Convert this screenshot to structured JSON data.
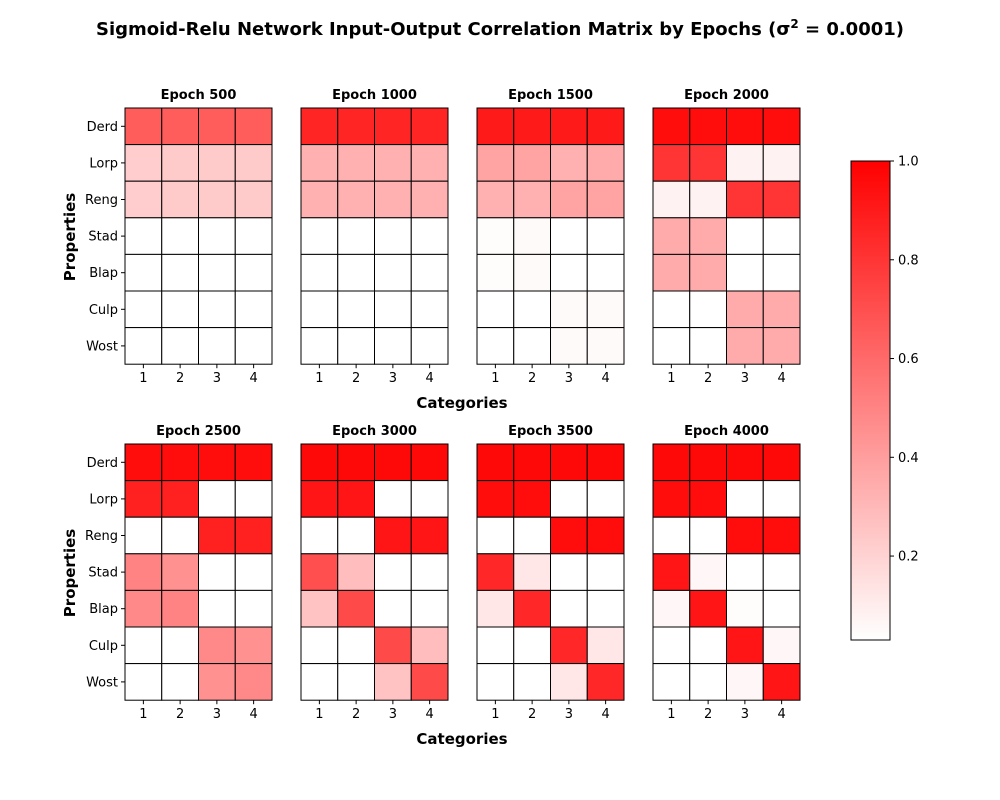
{
  "figure": {
    "title_main": "Sigmoid-Relu Network Input-Output Correlation Matrix by Epochs (σ",
    "title_sup": "2",
    "title_end": " = 0.0001)"
  },
  "colors": {
    "low": "#ffffff",
    "high": "#ff0000",
    "grid": "#000000"
  },
  "chart_data": {
    "type": "heatmap",
    "rows": [
      "Derd",
      "Lorp",
      "Reng",
      "Stad",
      "Blap",
      "Culp",
      "Wost"
    ],
    "columns": [
      "1",
      "2",
      "3",
      "4"
    ],
    "xlabel": "Categories",
    "ylabel": "Properties",
    "colorbar": {
      "min": 0.03,
      "max": 1.0,
      "ticks": [
        "0.2",
        "0.4",
        "0.6",
        "0.8",
        "1.0"
      ],
      "tick_values": [
        0.2,
        0.4,
        0.6,
        0.8,
        1.0
      ]
    },
    "panels": [
      {
        "title": "Epoch 500",
        "values": [
          [
            0.65,
            0.65,
            0.65,
            0.65
          ],
          [
            0.22,
            0.23,
            0.23,
            0.23
          ],
          [
            0.22,
            0.23,
            0.23,
            0.23
          ],
          [
            0.03,
            0.03,
            0.03,
            0.03
          ],
          [
            0.03,
            0.03,
            0.03,
            0.03
          ],
          [
            0.03,
            0.03,
            0.03,
            0.03
          ],
          [
            0.03,
            0.03,
            0.03,
            0.03
          ]
        ]
      },
      {
        "title": "Epoch 1000",
        "values": [
          [
            0.86,
            0.86,
            0.86,
            0.86
          ],
          [
            0.33,
            0.33,
            0.33,
            0.33
          ],
          [
            0.33,
            0.33,
            0.33,
            0.33
          ],
          [
            0.03,
            0.03,
            0.03,
            0.03
          ],
          [
            0.03,
            0.03,
            0.03,
            0.03
          ],
          [
            0.03,
            0.03,
            0.03,
            0.03
          ],
          [
            0.03,
            0.03,
            0.03,
            0.03
          ]
        ]
      },
      {
        "title": "Epoch 1500",
        "values": [
          [
            0.9,
            0.9,
            0.9,
            0.9
          ],
          [
            0.38,
            0.38,
            0.33,
            0.35
          ],
          [
            0.33,
            0.33,
            0.38,
            0.38
          ],
          [
            0.04,
            0.05,
            0.03,
            0.03
          ],
          [
            0.04,
            0.05,
            0.03,
            0.03
          ],
          [
            0.03,
            0.03,
            0.05,
            0.05
          ],
          [
            0.03,
            0.03,
            0.05,
            0.05
          ]
        ]
      },
      {
        "title": "Epoch 2000",
        "values": [
          [
            0.95,
            0.95,
            0.95,
            0.95
          ],
          [
            0.8,
            0.8,
            0.08,
            0.08
          ],
          [
            0.08,
            0.08,
            0.8,
            0.8
          ],
          [
            0.35,
            0.35,
            0.03,
            0.03
          ],
          [
            0.35,
            0.35,
            0.03,
            0.03
          ],
          [
            0.03,
            0.03,
            0.35,
            0.35
          ],
          [
            0.03,
            0.03,
            0.35,
            0.35
          ]
        ]
      },
      {
        "title": "Epoch 2500",
        "values": [
          [
            0.95,
            0.95,
            0.95,
            0.95
          ],
          [
            0.88,
            0.88,
            0.03,
            0.03
          ],
          [
            0.03,
            0.03,
            0.88,
            0.88
          ],
          [
            0.5,
            0.45,
            0.03,
            0.03
          ],
          [
            0.48,
            0.5,
            0.03,
            0.03
          ],
          [
            0.03,
            0.03,
            0.48,
            0.45
          ],
          [
            0.03,
            0.03,
            0.45,
            0.48
          ]
        ]
      },
      {
        "title": "Epoch 3000",
        "values": [
          [
            0.97,
            0.97,
            0.97,
            0.97
          ],
          [
            0.92,
            0.92,
            0.03,
            0.03
          ],
          [
            0.03,
            0.03,
            0.92,
            0.92
          ],
          [
            0.7,
            0.28,
            0.03,
            0.03
          ],
          [
            0.26,
            0.72,
            0.03,
            0.03
          ],
          [
            0.03,
            0.03,
            0.72,
            0.28
          ],
          [
            0.03,
            0.03,
            0.26,
            0.72
          ]
        ]
      },
      {
        "title": "Epoch 3500",
        "values": [
          [
            0.97,
            0.97,
            0.97,
            0.97
          ],
          [
            0.95,
            0.95,
            0.03,
            0.03
          ],
          [
            0.03,
            0.03,
            0.95,
            0.95
          ],
          [
            0.85,
            0.12,
            0.03,
            0.03
          ],
          [
            0.12,
            0.85,
            0.03,
            0.03
          ],
          [
            0.03,
            0.03,
            0.85,
            0.12
          ],
          [
            0.03,
            0.03,
            0.12,
            0.85
          ]
        ]
      },
      {
        "title": "Epoch 4000",
        "values": [
          [
            0.97,
            0.97,
            0.97,
            0.97
          ],
          [
            0.95,
            0.95,
            0.03,
            0.03
          ],
          [
            0.03,
            0.03,
            0.95,
            0.95
          ],
          [
            0.92,
            0.06,
            0.03,
            0.03
          ],
          [
            0.06,
            0.92,
            0.04,
            0.03
          ],
          [
            0.03,
            0.03,
            0.92,
            0.06
          ],
          [
            0.03,
            0.03,
            0.06,
            0.92
          ]
        ]
      }
    ]
  }
}
